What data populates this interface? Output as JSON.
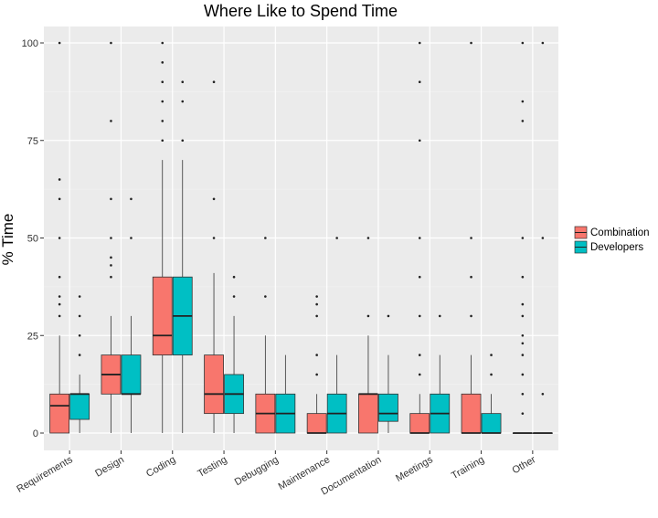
{
  "chart_data": {
    "type": "boxplot",
    "title": "Where Like to Spend Time",
    "xlabel": "",
    "ylabel": "% Time",
    "ylim": [
      -5,
      106
    ],
    "yticks": [
      0,
      25,
      50,
      75,
      100
    ],
    "grid": true,
    "legend": "right",
    "categories": [
      "Requirements",
      "Design",
      "Coding",
      "Testing",
      "Debugging",
      "Maintenance",
      "Documentation",
      "Meetings",
      "Training",
      "Other"
    ],
    "series": [
      {
        "name": "Combination",
        "color": "#F8766D",
        "boxes": [
          {
            "lower": 0,
            "q1": 0,
            "median": 7,
            "q3": 10,
            "upper": 25,
            "outliers": [
              30,
              33,
              35,
              40,
              50,
              60,
              65,
              100
            ]
          },
          {
            "lower": 0,
            "q1": 10,
            "median": 15,
            "q3": 20,
            "upper": 30,
            "outliers": [
              40,
              43,
              45,
              50,
              60,
              80,
              100
            ]
          },
          {
            "lower": 0,
            "q1": 20,
            "median": 25,
            "q3": 40,
            "upper": 70,
            "outliers": [
              75,
              80,
              85,
              90,
              95,
              100
            ]
          },
          {
            "lower": 0,
            "q1": 5,
            "median": 10,
            "q3": 20,
            "upper": 41,
            "outliers": [
              50,
              60,
              90
            ]
          },
          {
            "lower": 0,
            "q1": 0,
            "median": 5,
            "q3": 10,
            "upper": 25,
            "outliers": [
              35,
              50
            ]
          },
          {
            "lower": 0,
            "q1": 0,
            "median": 0,
            "q3": 5,
            "upper": 10,
            "outliers": [
              15,
              20,
              30,
              33,
              35
            ]
          },
          {
            "lower": 0,
            "q1": 0,
            "median": 10,
            "q3": 10,
            "upper": 25,
            "outliers": [
              30,
              50
            ]
          },
          {
            "lower": 0,
            "q1": 0,
            "median": 0,
            "q3": 5,
            "upper": 10,
            "outliers": [
              15,
              20,
              30,
              40,
              50,
              75,
              90,
              100
            ]
          },
          {
            "lower": 0,
            "q1": 0,
            "median": 0,
            "q3": 10,
            "upper": 20,
            "outliers": [
              30,
              40,
              50,
              100
            ]
          },
          {
            "lower": 0,
            "q1": 0,
            "median": 0,
            "q3": 0,
            "upper": 0,
            "outliers": [
              5,
              10,
              15,
              20,
              23,
              25,
              30,
              33,
              40,
              50,
              80,
              85,
              100
            ]
          }
        ]
      },
      {
        "name": "Developers",
        "color": "#00BFC4",
        "boxes": [
          {
            "lower": 0,
            "q1": 3.5,
            "median": 10,
            "q3": 10,
            "upper": 15,
            "outliers": [
              20,
              25,
              30,
              35
            ]
          },
          {
            "lower": 0,
            "q1": 10,
            "median": 10,
            "q3": 20,
            "upper": 30,
            "outliers": [
              50,
              60
            ]
          },
          {
            "lower": 0,
            "q1": 20,
            "median": 30,
            "q3": 40,
            "upper": 70,
            "outliers": [
              75,
              85,
              90
            ]
          },
          {
            "lower": 0,
            "q1": 5,
            "median": 10,
            "q3": 15,
            "upper": 30,
            "outliers": [
              35,
              40
            ]
          },
          {
            "lower": 0,
            "q1": 0,
            "median": 5,
            "q3": 10,
            "upper": 20,
            "outliers": []
          },
          {
            "lower": 0,
            "q1": 0,
            "median": 5,
            "q3": 10,
            "upper": 20,
            "outliers": [
              50
            ]
          },
          {
            "lower": 0,
            "q1": 3,
            "median": 5,
            "q3": 10,
            "upper": 20,
            "outliers": [
              30
            ]
          },
          {
            "lower": 0,
            "q1": 0,
            "median": 5,
            "q3": 10,
            "upper": 20,
            "outliers": [
              30
            ]
          },
          {
            "lower": 0,
            "q1": 0,
            "median": 0,
            "q3": 5,
            "upper": 10,
            "outliers": [
              15,
              20
            ]
          },
          {
            "lower": 0,
            "q1": 0,
            "median": 0,
            "q3": 0,
            "upper": 0,
            "outliers": [
              10,
              50,
              100
            ]
          }
        ]
      }
    ]
  }
}
